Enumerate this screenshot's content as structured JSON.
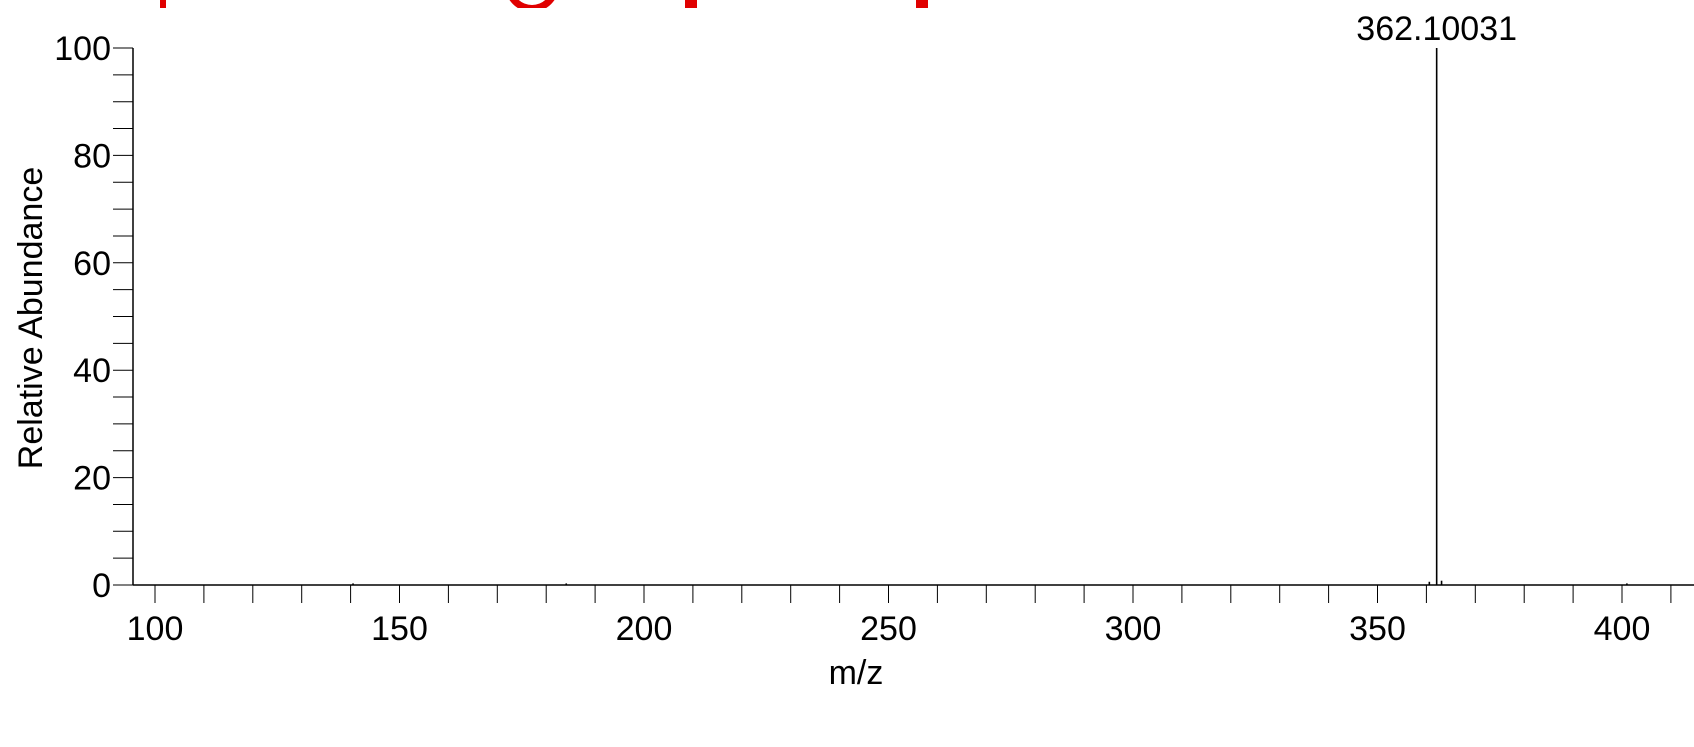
{
  "colors": {
    "axis": "#000000",
    "peak": "#000000",
    "title": "#e00000",
    "background": "#ffffff"
  },
  "chart_data": {
    "type": "bar",
    "title_fragment_visible": true,
    "xlabel": "m/z",
    "ylabel": "Relative Abundance",
    "xlim": [
      95,
      440
    ],
    "ylim": [
      0,
      100
    ],
    "x_ticks": [
      100,
      150,
      200,
      250,
      300,
      350,
      400
    ],
    "x_minor_step": 10,
    "y_ticks": [
      0,
      20,
      40,
      60,
      80,
      100
    ],
    "y_minor_step": 5,
    "grid": false,
    "legend": "none",
    "peaks": [
      {
        "mz": 140.5,
        "intensity": 0.3
      },
      {
        "mz": 184.1,
        "intensity": 0.3
      },
      {
        "mz": 360.6,
        "intensity": 0.6
      },
      {
        "mz": 362.10031,
        "intensity": 100,
        "label": "362.10031"
      },
      {
        "mz": 363.1,
        "intensity": 0.8
      },
      {
        "mz": 401.0,
        "intensity": 0.3
      }
    ]
  }
}
